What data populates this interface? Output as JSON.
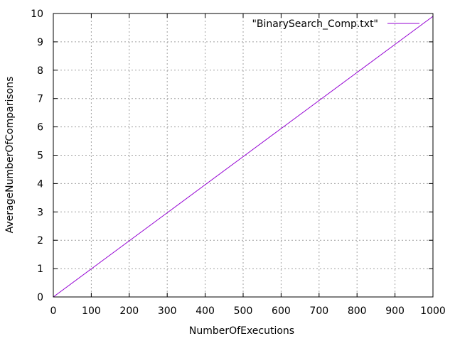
{
  "chart_data": {
    "type": "line",
    "title": "",
    "xlabel": "NumberOfExecutions",
    "ylabel": "AverageNumberOfComparisons",
    "xlim": [
      0,
      1000
    ],
    "ylim": [
      0,
      10
    ],
    "x_ticks": [
      0,
      100,
      200,
      300,
      400,
      500,
      600,
      700,
      800,
      900,
      1000
    ],
    "y_ticks": [
      0,
      1,
      2,
      3,
      4,
      5,
      6,
      7,
      8,
      9,
      10
    ],
    "grid": true,
    "legend_position": "top-right",
    "series": [
      {
        "name": "\"BinarySearch_Comp.txt\"",
        "color": "#9400d3",
        "x": [
          0,
          100,
          200,
          300,
          400,
          500,
          600,
          700,
          800,
          900,
          1000
        ],
        "y": [
          0,
          0.99,
          1.98,
          2.97,
          3.96,
          4.95,
          5.94,
          6.93,
          7.92,
          8.91,
          9.9
        ]
      }
    ]
  }
}
